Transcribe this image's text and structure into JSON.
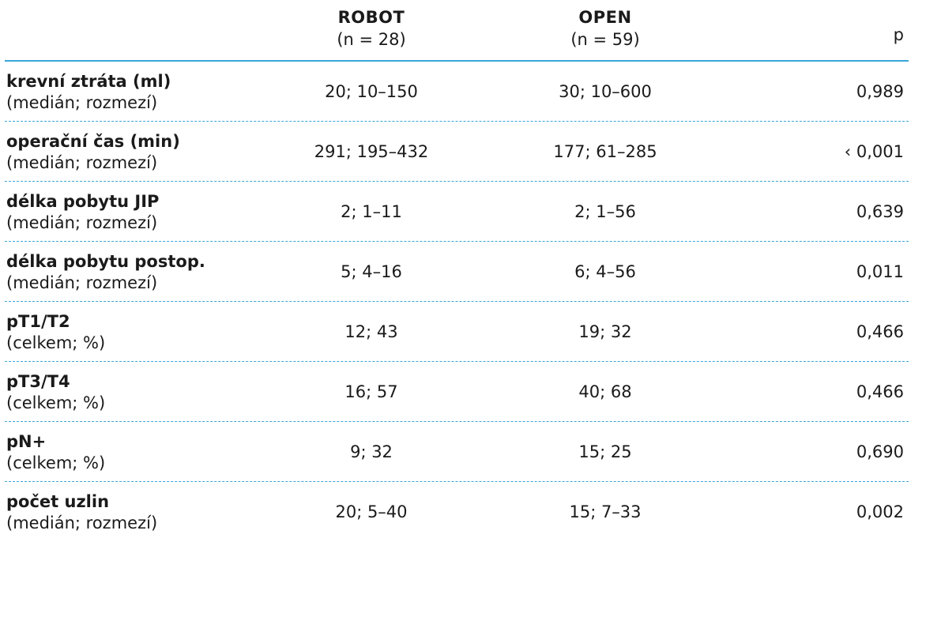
{
  "header": {
    "robot_name": "ROBOT",
    "robot_n": "(n = 28)",
    "open_name": "OPEN",
    "open_n": "(n = 59)",
    "p_label": "p"
  },
  "rows": [
    {
      "label": "krevní ztráta (ml)",
      "sub": "(medián; rozmezí)",
      "robot": "20; 10–150",
      "open": "30; 10–600",
      "p": "0,989"
    },
    {
      "label": "operační čas (min)",
      "sub": "(medián; rozmezí)",
      "robot": "291; 195–432",
      "open": "177; 61–285",
      "p": "‹ 0,001"
    },
    {
      "label": "délka pobytu JIP",
      "sub": "(medián; rozmezí)",
      "robot": "2; 1–11",
      "open": "2; 1–56",
      "p": "0,639"
    },
    {
      "label": "délka pobytu postop.",
      "sub": "(medián; rozmezí)",
      "robot": "5; 4–16",
      "open": "6; 4–56",
      "p": "0,011"
    },
    {
      "label": "pT1/T2",
      "sub": "(celkem; %)",
      "robot": "12; 43",
      "open": "19; 32",
      "p": "0,466"
    },
    {
      "label": "pT3/T4",
      "sub": "(celkem; %)",
      "robot": "16; 57",
      "open": "40; 68",
      "p": "0,466"
    },
    {
      "label": "pN+",
      "sub": "(celkem; %)",
      "robot": "9; 32",
      "open": "15; 25",
      "p": "0,690"
    },
    {
      "label": "počet uzlin",
      "sub": "(medián; rozmezí)",
      "robot": "20; 5–40",
      "open": "15; 7–33",
      "p": "0,002"
    }
  ]
}
